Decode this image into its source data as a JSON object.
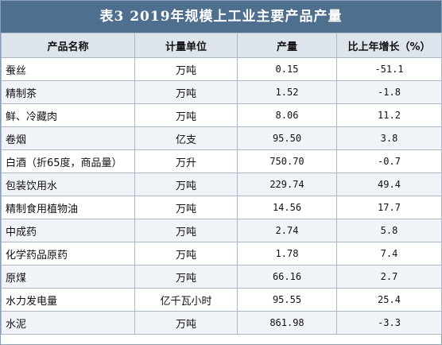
{
  "title": "表3   2019年规模上工业主要产品产量",
  "headers": [
    "产品名称",
    "计量单位",
    "产量",
    "比上年增长（%）"
  ],
  "rows": [
    {
      "name": "蚕丝",
      "unit": "万吨",
      "output": "0.15",
      "growth": "-51.1"
    },
    {
      "name": "精制茶",
      "unit": "万吨",
      "output": "1.52",
      "growth": "-1.8"
    },
    {
      "name": "鲜、冷藏肉",
      "unit": "万吨",
      "output": "8.06",
      "growth": "11.2"
    },
    {
      "name": "卷烟",
      "unit": "亿支",
      "output": "95.50",
      "growth": "3.8"
    },
    {
      "name": "白酒（折65度，商品量）",
      "unit": "万升",
      "output": "750.70",
      "growth": "-0.7"
    },
    {
      "name": "包装饮用水",
      "unit": "万吨",
      "output": "229.74",
      "growth": "49.4"
    },
    {
      "name": "精制食用植物油",
      "unit": "万吨",
      "output": "14.56",
      "growth": "17.7"
    },
    {
      "name": "中成药",
      "unit": "万吨",
      "output": "2.74",
      "growth": "5.8"
    },
    {
      "name": "化学药品原药",
      "unit": "万吨",
      "output": "1.78",
      "growth": "7.4"
    },
    {
      "name": "原煤",
      "unit": "万吨",
      "output": "66.16",
      "growth": "2.7"
    },
    {
      "name": "水力发电量",
      "unit": "亿千瓦小时",
      "output": "95.55",
      "growth": "25.4"
    },
    {
      "name": "水泥",
      "unit": "万吨",
      "output": "861.98",
      "growth": "-3.3"
    }
  ]
}
